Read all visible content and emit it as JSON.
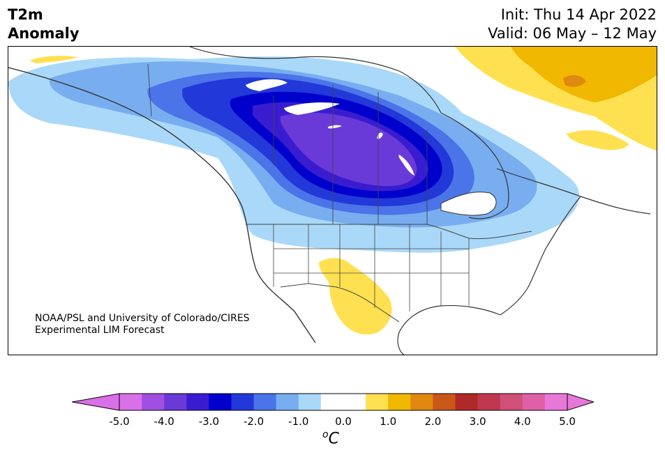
{
  "header": {
    "title_line1": "T2m",
    "title_line2": "Anomaly",
    "init": "Init: Thu 14 Apr 2022",
    "valid": "Valid: 06 May – 12 May"
  },
  "credit": {
    "line1": "NOAA/PSL and University of Colorado/CIRES",
    "line2": "Experimental LIM Forecast"
  },
  "colorbar": {
    "unit_base": "C",
    "unit_sup": "o",
    "ticks": [
      "-5.0",
      "-4.0",
      "-3.0",
      "-2.0",
      "-1.0",
      "0.0",
      "1.0",
      "2.0",
      "3.0",
      "4.0",
      "5.0"
    ],
    "colors": [
      "#da70e8",
      "#a050e0",
      "#6a3ad8",
      "#3a1cd0",
      "#0000cc",
      "#2238d8",
      "#4a74e8",
      "#78aef0",
      "#aad8f8",
      "#ffffff",
      "#ffffff",
      "#ffe050",
      "#f0b800",
      "#e08810",
      "#c85818",
      "#b02828",
      "#c03850",
      "#d05078",
      "#e060a8",
      "#e878d8"
    ],
    "under_color": "#da70e8",
    "over_color": "#e878d8"
  },
  "map": {
    "region": "North America",
    "anomaly_colors": {
      "light_blue": "#aad8f8",
      "blue1": "#78aef0",
      "blue2": "#4a74e8",
      "blue3": "#2238d8",
      "blue4": "#0000cc",
      "purple1": "#3a1cd0",
      "purple2": "#6a3ad8",
      "yellow": "#ffe050",
      "gold": "#f0b800",
      "orange": "#e08810"
    }
  }
}
